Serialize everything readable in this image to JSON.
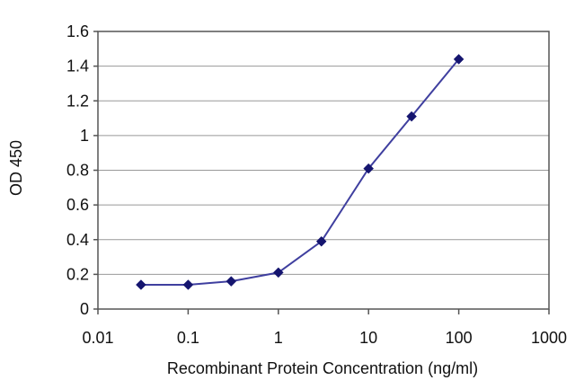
{
  "chart_data": {
    "type": "line",
    "title": "",
    "xlabel": "Recombinant Protein Concentration (ng/ml)",
    "ylabel": "OD 450",
    "x_scale": "log",
    "xlim": [
      0.01,
      1000
    ],
    "ylim": [
      0,
      1.6
    ],
    "x_ticks": [
      0.01,
      0.1,
      1,
      10,
      100,
      1000
    ],
    "x_tick_labels": [
      "0.01",
      "0.1",
      "1",
      "10",
      "100",
      "1000"
    ],
    "y_ticks": [
      0,
      0.2,
      0.4,
      0.6,
      0.8,
      1,
      1.2,
      1.4,
      1.6
    ],
    "y_tick_labels": [
      "0",
      "0.2",
      "0.4",
      "0.6",
      "0.8",
      "1",
      "1.2",
      "1.4",
      "1.6"
    ],
    "grid": "horizontal",
    "legend": "none",
    "series": [
      {
        "x": [
          0.03,
          0.1,
          0.3,
          1,
          3,
          10,
          30,
          100
        ],
        "y": [
          0.14,
          0.14,
          0.16,
          0.21,
          0.39,
          0.81,
          1.11,
          1.44
        ],
        "color": "#3f3f9f",
        "marker": "diamond",
        "marker_color": "#15156f"
      }
    ],
    "gridline_color": "#999999",
    "axis_color": "#555555"
  }
}
